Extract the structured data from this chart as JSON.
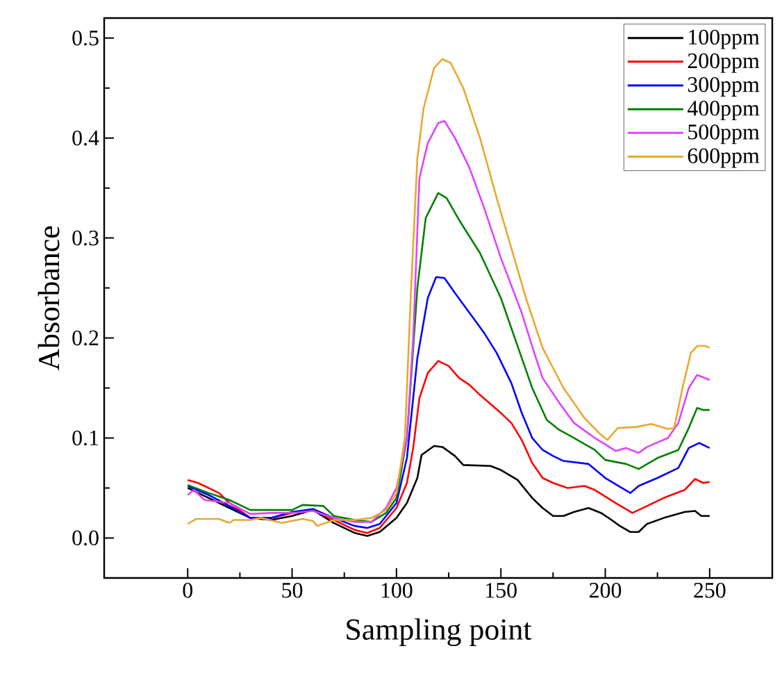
{
  "chart_data": {
    "type": "line",
    "xlabel": "Sampling point",
    "ylabel": "Absorbance",
    "xlim": [
      -40,
      280
    ],
    "xticks": [
      0,
      50,
      100,
      150,
      200,
      250
    ],
    "ylim": [
      -0.04,
      0.52
    ],
    "yticks": [
      {
        "value": 0,
        "label": "0.0"
      },
      0.1,
      0.2,
      0.3,
      0.4,
      0.5
    ],
    "legend": "top right",
    "grid": false,
    "marker": "none",
    "line_style": "solid",
    "series": [
      {
        "name": "100ppm",
        "color": "#000000",
        "x": [
          0,
          10,
          20,
          30,
          40,
          50,
          60,
          70,
          80,
          86,
          92,
          100,
          105,
          110,
          112,
          118,
          122,
          128,
          132,
          145,
          150,
          158,
          165,
          170,
          175,
          180,
          185,
          192,
          198,
          203,
          207,
          212,
          216,
          220,
          228,
          238,
          243,
          246,
          250
        ],
        "values": [
          0.05,
          0.04,
          0.03,
          0.02,
          0.018,
          0.022,
          0.028,
          0.015,
          0.005,
          0.002,
          0.006,
          0.02,
          0.035,
          0.06,
          0.083,
          0.092,
          0.091,
          0.082,
          0.073,
          0.072,
          0.068,
          0.058,
          0.04,
          0.03,
          0.022,
          0.022,
          0.026,
          0.03,
          0.025,
          0.018,
          0.012,
          0.006,
          0.006,
          0.014,
          0.02,
          0.026,
          0.027,
          0.022,
          0.022
        ]
      },
      {
        "name": "200ppm",
        "color": "#ff0000",
        "x": [
          0,
          5,
          10,
          15,
          20,
          30,
          40,
          50,
          60,
          70,
          80,
          86,
          92,
          100,
          105,
          108,
          111,
          115,
          120,
          125,
          130,
          135,
          140,
          150,
          155,
          160,
          165,
          170,
          175,
          182,
          190,
          195,
          205,
          213,
          220,
          228,
          238,
          243,
          247,
          250
        ],
        "values": [
          0.058,
          0.055,
          0.05,
          0.045,
          0.035,
          0.02,
          0.02,
          0.025,
          0.028,
          0.018,
          0.008,
          0.005,
          0.01,
          0.03,
          0.055,
          0.09,
          0.14,
          0.165,
          0.177,
          0.172,
          0.16,
          0.153,
          0.143,
          0.125,
          0.115,
          0.098,
          0.075,
          0.06,
          0.055,
          0.05,
          0.052,
          0.048,
          0.035,
          0.025,
          0.032,
          0.04,
          0.048,
          0.059,
          0.055,
          0.056
        ]
      },
      {
        "name": "300ppm",
        "color": "#0000ff",
        "x": [
          0,
          10,
          20,
          30,
          40,
          50,
          60,
          70,
          80,
          86,
          92,
          100,
          105,
          110,
          115,
          119,
          123,
          128,
          135,
          142,
          148,
          155,
          160,
          165,
          170,
          175,
          180,
          192,
          200,
          212,
          216,
          225,
          235,
          240,
          245,
          250
        ],
        "values": [
          0.052,
          0.043,
          0.032,
          0.02,
          0.02,
          0.026,
          0.029,
          0.02,
          0.012,
          0.01,
          0.014,
          0.035,
          0.08,
          0.18,
          0.24,
          0.261,
          0.26,
          0.245,
          0.225,
          0.205,
          0.185,
          0.155,
          0.125,
          0.1,
          0.088,
          0.082,
          0.077,
          0.074,
          0.06,
          0.045,
          0.052,
          0.06,
          0.07,
          0.09,
          0.095,
          0.09
        ]
      },
      {
        "name": "400ppm",
        "color": "#008000",
        "x": [
          0,
          10,
          20,
          30,
          40,
          50,
          55,
          65,
          70,
          80,
          88,
          95,
          100,
          105,
          110,
          114,
          120,
          124,
          130,
          140,
          150,
          160,
          165,
          172,
          178,
          185,
          190,
          195,
          200,
          210,
          216,
          225,
          235,
          240,
          244,
          247,
          250
        ],
        "values": [
          0.053,
          0.045,
          0.038,
          0.028,
          0.028,
          0.028,
          0.033,
          0.032,
          0.022,
          0.018,
          0.016,
          0.025,
          0.04,
          0.1,
          0.25,
          0.32,
          0.345,
          0.34,
          0.318,
          0.285,
          0.24,
          0.18,
          0.15,
          0.118,
          0.108,
          0.1,
          0.094,
          0.088,
          0.078,
          0.074,
          0.069,
          0.08,
          0.088,
          0.11,
          0.13,
          0.128,
          0.128
        ]
      },
      {
        "name": "500ppm",
        "color": "#dd44ff",
        "x": [
          0,
          3,
          8,
          20,
          30,
          40,
          50,
          60,
          70,
          80,
          88,
          95,
          100,
          105,
          108,
          111,
          115,
          120,
          123,
          128,
          135,
          142,
          150,
          160,
          166,
          170,
          178,
          185,
          195,
          205,
          210,
          216,
          220,
          230,
          235,
          240,
          244,
          250
        ],
        "values": [
          0.043,
          0.048,
          0.038,
          0.035,
          0.024,
          0.025,
          0.025,
          0.027,
          0.02,
          0.016,
          0.016,
          0.03,
          0.05,
          0.1,
          0.2,
          0.36,
          0.395,
          0.415,
          0.417,
          0.4,
          0.37,
          0.33,
          0.28,
          0.225,
          0.185,
          0.16,
          0.135,
          0.115,
          0.1,
          0.087,
          0.09,
          0.085,
          0.091,
          0.1,
          0.115,
          0.15,
          0.163,
          0.158
        ]
      },
      {
        "name": "600ppm",
        "color": "#e8a830",
        "x": [
          0,
          4,
          10,
          15,
          20,
          22,
          30,
          35,
          45,
          55,
          60,
          62,
          70,
          80,
          88,
          95,
          100,
          104,
          107,
          110,
          113,
          118,
          122,
          126,
          132,
          140,
          148,
          155,
          162,
          170,
          180,
          190,
          197,
          201,
          206,
          215,
          222,
          230,
          233,
          237,
          241,
          244,
          248,
          250
        ],
        "values": [
          0.014,
          0.019,
          0.019,
          0.019,
          0.015,
          0.018,
          0.018,
          0.02,
          0.015,
          0.019,
          0.017,
          0.012,
          0.018,
          0.018,
          0.02,
          0.028,
          0.045,
          0.1,
          0.25,
          0.38,
          0.43,
          0.47,
          0.479,
          0.475,
          0.45,
          0.4,
          0.34,
          0.29,
          0.24,
          0.19,
          0.15,
          0.12,
          0.105,
          0.098,
          0.11,
          0.111,
          0.114,
          0.109,
          0.11,
          0.15,
          0.185,
          0.192,
          0.192,
          0.19
        ]
      }
    ]
  }
}
